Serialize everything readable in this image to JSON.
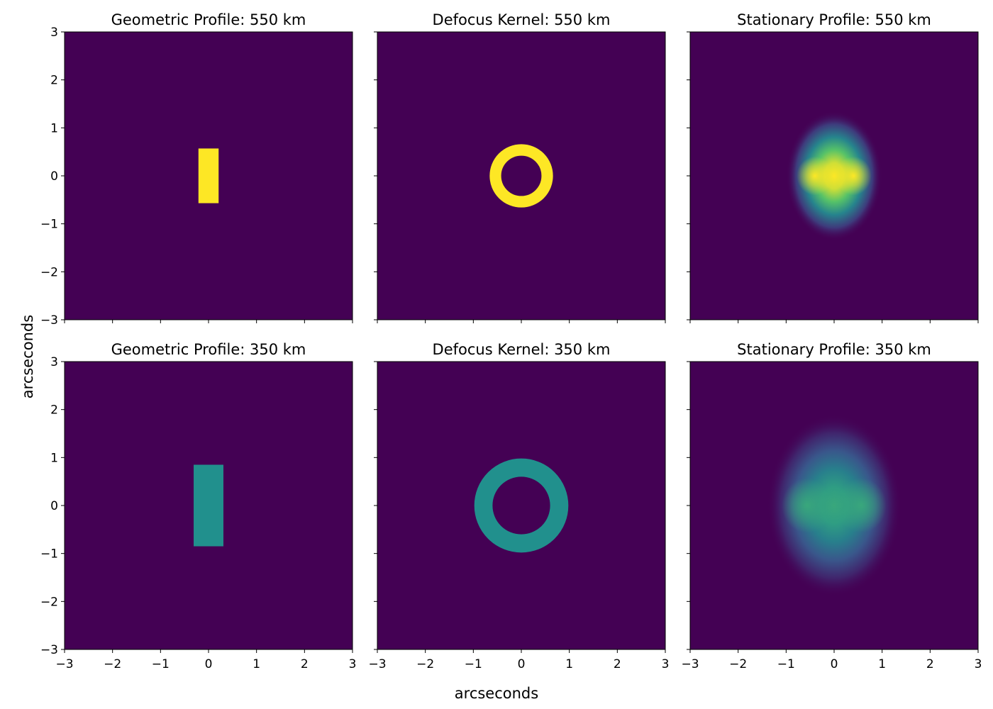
{
  "figure": {
    "xlabel": "arcseconds",
    "ylabel": "arcseconds"
  },
  "colors": {
    "background": "#440154",
    "high": "#fde725",
    "mid": "#218f8d",
    "colormap": "viridis"
  },
  "chart_data": [
    {
      "type": "heatmap",
      "title": "Geometric Profile: 550 km",
      "xlim": [
        -3,
        3
      ],
      "ylim": [
        -3,
        3
      ],
      "x_ticks": [
        "−3",
        "−2",
        "−1",
        "0",
        "1",
        "2",
        "3"
      ],
      "y_ticks": [
        "3",
        "2",
        "1",
        "0",
        "−1",
        "−2",
        "−3"
      ],
      "shape": "rectangle",
      "x_range": [
        -0.21,
        0.21
      ],
      "y_range": [
        -0.57,
        0.57
      ],
      "level": 1.0,
      "show_xticklabels": false,
      "show_yticklabels": true
    },
    {
      "type": "heatmap",
      "title": "Defocus Kernel: 550 km",
      "xlim": [
        -3,
        3
      ],
      "ylim": [
        -3,
        3
      ],
      "x_ticks": [
        "−3",
        "−2",
        "−1",
        "0",
        "1",
        "2",
        "3"
      ],
      "y_ticks": [
        "3",
        "2",
        "1",
        "0",
        "−1",
        "−2",
        "−3"
      ],
      "shape": "ring",
      "center": [
        0,
        0
      ],
      "outer_radius": 0.66,
      "inner_radius": 0.42,
      "level": 1.0,
      "show_xticklabels": false,
      "show_yticklabels": false
    },
    {
      "type": "heatmap",
      "title": "Stationary Profile: 550 km",
      "xlim": [
        -3,
        3
      ],
      "ylim": [
        -3,
        3
      ],
      "x_ticks": [
        "−3",
        "−2",
        "−1",
        "0",
        "1",
        "2",
        "3"
      ],
      "y_ticks": [
        "3",
        "2",
        "1",
        "0",
        "−1",
        "−2",
        "−3"
      ],
      "shape": "blur",
      "center": [
        0,
        0
      ],
      "extent_x": 1.0,
      "extent_y": 1.35,
      "peak_level": 1.0,
      "show_xticklabels": false,
      "show_yticklabels": false
    },
    {
      "type": "heatmap",
      "title": "Geometric Profile: 350 km",
      "xlim": [
        -3,
        3
      ],
      "ylim": [
        -3,
        3
      ],
      "x_ticks": [
        "−3",
        "−2",
        "−1",
        "0",
        "1",
        "2",
        "3"
      ],
      "y_ticks": [
        "3",
        "2",
        "1",
        "0",
        "−1",
        "−2",
        "−3"
      ],
      "shape": "rectangle",
      "x_range": [
        -0.31,
        0.31
      ],
      "y_range": [
        -0.85,
        0.85
      ],
      "level": 0.5,
      "show_xticklabels": true,
      "show_yticklabels": true
    },
    {
      "type": "heatmap",
      "title": "Defocus Kernel: 350 km",
      "xlim": [
        -3,
        3
      ],
      "ylim": [
        -3,
        3
      ],
      "x_ticks": [
        "−3",
        "−2",
        "−1",
        "0",
        "1",
        "2",
        "3"
      ],
      "y_ticks": [
        "3",
        "2",
        "1",
        "0",
        "−1",
        "−2",
        "−3"
      ],
      "shape": "ring",
      "center": [
        0,
        0
      ],
      "outer_radius": 0.98,
      "inner_radius": 0.6,
      "level": 0.5,
      "show_xticklabels": true,
      "show_yticklabels": false
    },
    {
      "type": "heatmap",
      "title": "Stationary Profile: 350 km",
      "xlim": [
        -3,
        3
      ],
      "ylim": [
        -3,
        3
      ],
      "x_ticks": [
        "−3",
        "−2",
        "−1",
        "0",
        "1",
        "2",
        "3"
      ],
      "y_ticks": [
        "3",
        "2",
        "1",
        "0",
        "−1",
        "−2",
        "−3"
      ],
      "shape": "blur",
      "center": [
        0,
        0
      ],
      "extent_x": 1.4,
      "extent_y": 1.9,
      "peak_level": 0.6,
      "show_xticklabels": true,
      "show_yticklabels": false
    }
  ]
}
